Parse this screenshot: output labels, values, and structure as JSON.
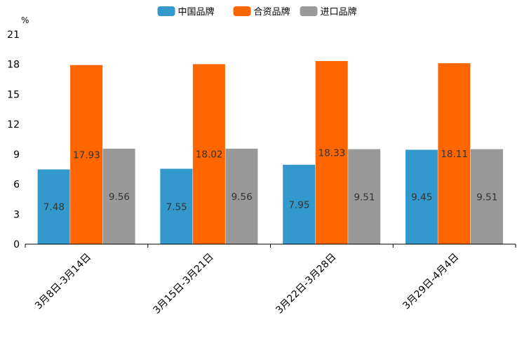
{
  "chart_data": {
    "type": "bar",
    "unit": "%",
    "categories": [
      "3月8日-3月14日",
      "3月15日-3月21日",
      "3月22日-3月28日",
      "3月29日-4月4日"
    ],
    "series": [
      {
        "name": "中国品牌",
        "color": "#3399cc",
        "values": [
          7.48,
          7.55,
          7.95,
          9.45
        ]
      },
      {
        "name": "合资品牌",
        "color": "#ff6600",
        "values": [
          17.93,
          18.02,
          18.33,
          18.11
        ]
      },
      {
        "name": "进口品牌",
        "color": "#999999",
        "values": [
          9.56,
          9.56,
          9.51,
          9.51
        ]
      }
    ],
    "ylim": [
      0,
      21
    ],
    "yticks": [
      0,
      3,
      6,
      9,
      12,
      15,
      18,
      21
    ],
    "legend_position": "top-center",
    "grid": false
  }
}
